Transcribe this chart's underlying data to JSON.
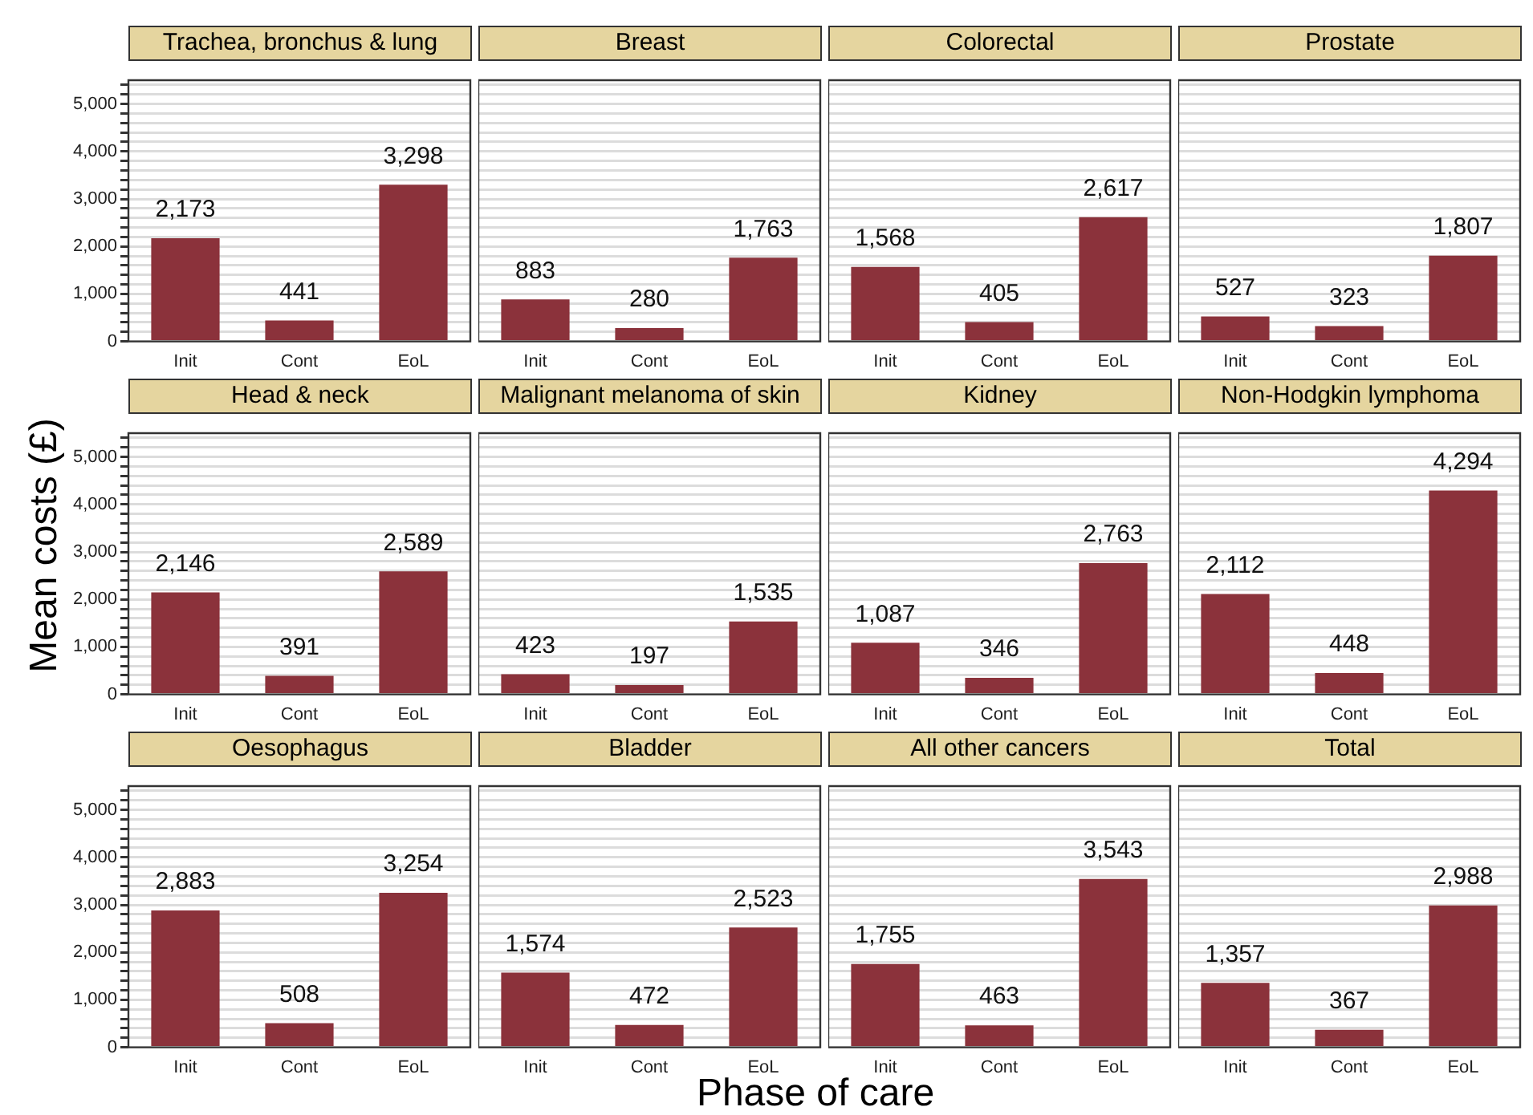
{
  "chart_data": [
    {
      "type": "bar",
      "title": "Trachea, bronchus & lung",
      "categories": [
        "Init",
        "Cont",
        "EoL"
      ],
      "values": [
        2173,
        441,
        3298
      ],
      "value_labels": [
        "2,173",
        "441",
        "3,298"
      ],
      "color": "#8b323b",
      "ylim": [
        0,
        5500
      ],
      "yticks": [
        0,
        {
          "value": 200,
          "label": null
        },
        {
          "value": 400,
          "label": null
        },
        {
          "value": 600,
          "label": null
        },
        {
          "value": 800,
          "label": null
        },
        {
          "value": 1000,
          "label": "1,000"
        },
        {
          "value": 1200,
          "label": null
        },
        {
          "value": 1400,
          "label": null
        },
        {
          "value": 1600,
          "label": null
        },
        {
          "value": 1800,
          "label": null
        },
        {
          "value": 2000,
          "label": "2,000"
        },
        {
          "value": 2200,
          "label": null
        },
        {
          "value": 2400,
          "label": null
        },
        {
          "value": 2600,
          "label": null
        },
        {
          "value": 2800,
          "label": null
        },
        {
          "value": 3000,
          "label": "3,000"
        },
        {
          "value": 3200,
          "label": null
        },
        {
          "value": 3400,
          "label": null
        },
        {
          "value": 3600,
          "label": null
        },
        {
          "value": 3800,
          "label": null
        },
        {
          "value": 4000,
          "label": "4,000"
        },
        {
          "value": 4200,
          "label": null
        },
        {
          "value": 4400,
          "label": null
        },
        {
          "value": 4600,
          "label": null
        },
        {
          "value": 4800,
          "label": null
        },
        {
          "value": 5000,
          "label": "5,000"
        },
        {
          "value": 5200,
          "label": null
        },
        {
          "value": 5400,
          "label": null
        }
      ],
      "grid": "y"
    },
    {
      "type": "bar",
      "title": "Breast",
      "categories": [
        "Init",
        "Cont",
        "EoL"
      ],
      "values": [
        883,
        280,
        1763
      ],
      "value_labels": [
        "883",
        "280",
        "1,763"
      ],
      "color": "#8b323b",
      "ylim": [
        0,
        5500
      ],
      "yticks": [
        0,
        200,
        400,
        600,
        800,
        1000,
        1200,
        1400,
        1600,
        1800,
        2000,
        2200,
        2400,
        2600,
        2800,
        3000,
        3200,
        3400,
        3600,
        3800,
        4000,
        4200,
        4400,
        4600,
        4800,
        5000,
        5200,
        5400
      ],
      "grid": "y",
      "tick_labels": "x"
    },
    {
      "type": "bar",
      "title": "Colorectal",
      "categories": [
        "Init",
        "Cont",
        "EoL"
      ],
      "values": [
        1568,
        405,
        2617
      ],
      "value_labels": [
        "1,568",
        "405",
        "2,617"
      ],
      "color": "#8b323b",
      "ylim": [
        0,
        5500
      ],
      "yticks": [
        0,
        200,
        400,
        600,
        800,
        1000,
        1200,
        1400,
        1600,
        1800,
        2000,
        2200,
        2400,
        2600,
        2800,
        3000,
        3200,
        3400,
        3600,
        3800,
        4000,
        4200,
        4400,
        4600,
        4800,
        5000,
        5200,
        5400
      ],
      "grid": "y",
      "tick_labels": "x"
    },
    {
      "type": "bar",
      "title": "Prostate",
      "categories": [
        "Init",
        "Cont",
        "EoL"
      ],
      "values": [
        527,
        323,
        1807
      ],
      "value_labels": [
        "527",
        "323",
        "1,807"
      ],
      "color": "#8b323b",
      "ylim": [
        0,
        5500
      ],
      "yticks": [
        0,
        200,
        400,
        600,
        800,
        1000,
        1200,
        1400,
        1600,
        1800,
        2000,
        2200,
        2400,
        2600,
        2800,
        3000,
        3200,
        3400,
        3600,
        3800,
        4000,
        4200,
        4400,
        4600,
        4800,
        5000,
        5200,
        5400
      ],
      "grid": "y",
      "tick_labels": "x"
    },
    {
      "type": "bar",
      "title": "Head & neck",
      "ylabel": "Mean costs (£)",
      "categories": [
        "Init",
        "Cont",
        "EoL"
      ],
      "values": [
        2146,
        391,
        2589
      ],
      "value_labels": [
        "2,146",
        "391",
        "2,589"
      ],
      "color": "#8b323b",
      "ylim": [
        0,
        5500
      ],
      "yticks": [
        0,
        {
          "value": 200,
          "label": null
        },
        {
          "value": 400,
          "label": null
        },
        {
          "value": 600,
          "label": null
        },
        {
          "value": 800,
          "label": null
        },
        {
          "value": 1000,
          "label": "1,000"
        },
        {
          "value": 1200,
          "label": null
        },
        {
          "value": 1400,
          "label": null
        },
        {
          "value": 1600,
          "label": null
        },
        {
          "value": 1800,
          "label": null
        },
        {
          "value": 2000,
          "label": "2,000"
        },
        {
          "value": 2200,
          "label": null
        },
        {
          "value": 2400,
          "label": null
        },
        {
          "value": 2600,
          "label": null
        },
        {
          "value": 2800,
          "label": null
        },
        {
          "value": 3000,
          "label": "3,000"
        },
        {
          "value": 3200,
          "label": null
        },
        {
          "value": 3400,
          "label": null
        },
        {
          "value": 3600,
          "label": null
        },
        {
          "value": 3800,
          "label": null
        },
        {
          "value": 4000,
          "label": "4,000"
        },
        {
          "value": 4200,
          "label": null
        },
        {
          "value": 4400,
          "label": null
        },
        {
          "value": 4600,
          "label": null
        },
        {
          "value": 4800,
          "label": null
        },
        {
          "value": 5000,
          "label": "5,000"
        },
        {
          "value": 5200,
          "label": null
        },
        {
          "value": 5400,
          "label": null
        }
      ],
      "grid": "y"
    },
    {
      "type": "bar",
      "title": "Malignant melanoma of skin",
      "categories": [
        "Init",
        "Cont",
        "EoL"
      ],
      "values": [
        423,
        197,
        1535
      ],
      "value_labels": [
        "423",
        "197",
        "1,535"
      ],
      "color": "#8b323b",
      "ylim": [
        0,
        5500
      ],
      "yticks": [
        0,
        200,
        400,
        600,
        800,
        1000,
        1200,
        1400,
        1600,
        1800,
        2000,
        2200,
        2400,
        2600,
        2800,
        3000,
        3200,
        3400,
        3600,
        3800,
        4000,
        4200,
        4400,
        4600,
        4800,
        5000,
        5200,
        5400
      ],
      "grid": "y",
      "tick_labels": "x"
    },
    {
      "type": "bar",
      "title": "Kidney",
      "categories": [
        "Init",
        "Cont",
        "EoL"
      ],
      "values": [
        1087,
        346,
        2763
      ],
      "value_labels": [
        "1,087",
        "346",
        "2,763"
      ],
      "color": "#8b323b",
      "ylim": [
        0,
        5500
      ],
      "yticks": [
        0,
        200,
        400,
        600,
        800,
        1000,
        1200,
        1400,
        1600,
        1800,
        2000,
        2200,
        2400,
        2600,
        2800,
        3000,
        3200,
        3400,
        3600,
        3800,
        4000,
        4200,
        4400,
        4600,
        4800,
        5000,
        5200,
        5400
      ],
      "grid": "y",
      "tick_labels": "x"
    },
    {
      "type": "bar",
      "title": "Non-Hodgkin lymphoma",
      "categories": [
        "Init",
        "Cont",
        "EoL"
      ],
      "values": [
        2112,
        448,
        4294
      ],
      "value_labels": [
        "2,112",
        "448",
        "4,294"
      ],
      "color": "#8b323b",
      "ylim": [
        0,
        5500
      ],
      "yticks": [
        0,
        200,
        400,
        600,
        800,
        1000,
        1200,
        1400,
        1600,
        1800,
        2000,
        2200,
        2400,
        2600,
        2800,
        3000,
        3200,
        3400,
        3600,
        3800,
        4000,
        4200,
        4400,
        4600,
        4800,
        5000,
        5200,
        5400
      ],
      "grid": "y",
      "tick_labels": "x"
    },
    {
      "type": "bar",
      "title": "Oesophagus",
      "categories": [
        "Init",
        "Cont",
        "EoL"
      ],
      "values": [
        2883,
        508,
        3254
      ],
      "value_labels": [
        "2,883",
        "508",
        "3,254"
      ],
      "color": "#8b323b",
      "ylim": [
        0,
        5500
      ],
      "yticks": [
        0,
        {
          "value": 200,
          "label": null
        },
        {
          "value": 400,
          "label": null
        },
        {
          "value": 600,
          "label": null
        },
        {
          "value": 800,
          "label": null
        },
        {
          "value": 1000,
          "label": "1,000"
        },
        {
          "value": 1200,
          "label": null
        },
        {
          "value": 1400,
          "label": null
        },
        {
          "value": 1600,
          "label": null
        },
        {
          "value": 1800,
          "label": null
        },
        {
          "value": 2000,
          "label": "2,000"
        },
        {
          "value": 2200,
          "label": null
        },
        {
          "value": 2400,
          "label": null
        },
        {
          "value": 2600,
          "label": null
        },
        {
          "value": 2800,
          "label": null
        },
        {
          "value": 3000,
          "label": "3,000"
        },
        {
          "value": 3200,
          "label": null
        },
        {
          "value": 3400,
          "label": null
        },
        {
          "value": 3600,
          "label": null
        },
        {
          "value": 3800,
          "label": null
        },
        {
          "value": 4000,
          "label": "4,000"
        },
        {
          "value": 4200,
          "label": null
        },
        {
          "value": 4400,
          "label": null
        },
        {
          "value": 4600,
          "label": null
        },
        {
          "value": 4800,
          "label": null
        },
        {
          "value": 5000,
          "label": "5,000"
        },
        {
          "value": 5200,
          "label": null
        },
        {
          "value": 5400,
          "label": null
        }
      ],
      "grid": "y"
    },
    {
      "type": "bar",
      "title": "Bladder",
      "xlabel": "Phase of care",
      "categories": [
        "Init",
        "Cont",
        "EoL"
      ],
      "values": [
        1574,
        472,
        2523
      ],
      "value_labels": [
        "1,574",
        "472",
        "2,523"
      ],
      "color": "#8b323b",
      "ylim": [
        0,
        5500
      ],
      "yticks": [
        0,
        200,
        400,
        600,
        800,
        1000,
        1200,
        1400,
        1600,
        1800,
        2000,
        2200,
        2400,
        2600,
        2800,
        3000,
        3200,
        3400,
        3600,
        3800,
        4000,
        4200,
        4400,
        4600,
        4800,
        5000,
        5200,
        5400
      ],
      "grid": "y",
      "tick_labels": "x"
    },
    {
      "type": "bar",
      "title": "All other cancers",
      "categories": [
        "Init",
        "Cont",
        "EoL"
      ],
      "values": [
        1755,
        463,
        3543
      ],
      "value_labels": [
        "1,755",
        "463",
        "3,543"
      ],
      "color": "#8b323b",
      "ylim": [
        0,
        5500
      ],
      "yticks": [
        0,
        200,
        400,
        600,
        800,
        1000,
        1200,
        1400,
        1600,
        1800,
        2000,
        2200,
        2400,
        2600,
        2800,
        3000,
        3200,
        3400,
        3600,
        3800,
        4000,
        4200,
        4400,
        4600,
        4800,
        5000,
        5200,
        5400
      ],
      "grid": "y",
      "tick_labels": "x"
    },
    {
      "type": "bar",
      "title": "Total",
      "categories": [
        "Init",
        "Cont",
        "EoL"
      ],
      "values": [
        1357,
        367,
        2988
      ],
      "value_labels": [
        "1,357",
        "367",
        "2,988"
      ],
      "color": "#8b323b",
      "ylim": [
        0,
        5500
      ],
      "yticks": [
        0,
        200,
        400,
        600,
        800,
        1000,
        1200,
        1400,
        1600,
        1800,
        2000,
        2200,
        2400,
        2600,
        2800,
        3000,
        3200,
        3400,
        3600,
        3800,
        4000,
        4200,
        4400,
        4600,
        4800,
        5000,
        5200,
        5400
      ],
      "grid": "y",
      "tick_labels": "x"
    }
  ]
}
